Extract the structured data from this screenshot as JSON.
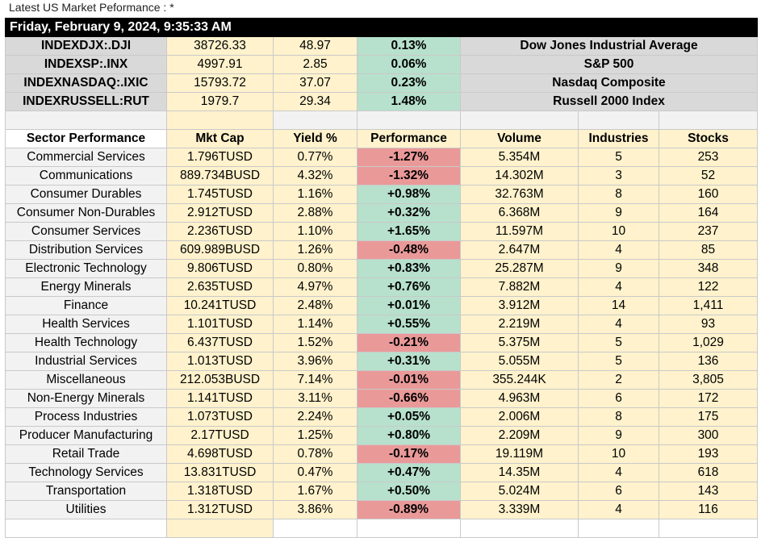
{
  "page": {
    "title": "Latest US Market Peformance : *"
  },
  "banner": {
    "date": "Friday, February 9, 2024, 9:35:33 AM"
  },
  "indices": [
    {
      "symbol": "INDEXDJX:.DJI",
      "price": "38726.33",
      "change": "48.97",
      "percent": "0.13%",
      "name": "Dow Jones Industrial Average"
    },
    {
      "symbol": "INDEXSP:.INX",
      "price": "4997.91",
      "change": "2.85",
      "percent": "0.06%",
      "name": "S&P 500"
    },
    {
      "symbol": "INDEXNASDAQ:.IXIC",
      "price": "15793.72",
      "change": "37.07",
      "percent": "0.23%",
      "name": "Nasdaq Composite"
    },
    {
      "symbol": "INDEXRUSSELL:RUT",
      "price": "1979.7",
      "change": "29.34",
      "percent": "1.48%",
      "name": "Russell 2000 Index"
    }
  ],
  "sector_headers": [
    "Sector Performance",
    "Mkt Cap",
    "Yield %",
    "Performance",
    "Volume",
    "Industries",
    "Stocks"
  ],
  "sectors": [
    {
      "sector": "Commercial Services",
      "mktcap": "1.796TUSD",
      "yield": "0.77%",
      "performance": "-1.27%",
      "dir": "neg",
      "volume": "5.354M",
      "industries": "5",
      "stocks": "253"
    },
    {
      "sector": "Communications",
      "mktcap": "889.734BUSD",
      "yield": "4.32%",
      "performance": "-1.32%",
      "dir": "neg",
      "volume": "14.302M",
      "industries": "3",
      "stocks": "52"
    },
    {
      "sector": "Consumer Durables",
      "mktcap": "1.745TUSD",
      "yield": "1.16%",
      "performance": "+0.98%",
      "dir": "pos",
      "volume": "32.763M",
      "industries": "8",
      "stocks": "160"
    },
    {
      "sector": "Consumer Non-Durables",
      "mktcap": "2.912TUSD",
      "yield": "2.88%",
      "performance": "+0.32%",
      "dir": "pos",
      "volume": "6.368M",
      "industries": "9",
      "stocks": "164"
    },
    {
      "sector": "Consumer Services",
      "mktcap": "2.236TUSD",
      "yield": "1.10%",
      "performance": "+1.65%",
      "dir": "pos",
      "volume": "11.597M",
      "industries": "10",
      "stocks": "237"
    },
    {
      "sector": "Distribution Services",
      "mktcap": "609.989BUSD",
      "yield": "1.26%",
      "performance": "-0.48%",
      "dir": "neg",
      "volume": "2.647M",
      "industries": "4",
      "stocks": "85"
    },
    {
      "sector": "Electronic Technology",
      "mktcap": "9.806TUSD",
      "yield": "0.80%",
      "performance": "+0.83%",
      "dir": "pos",
      "volume": "25.287M",
      "industries": "9",
      "stocks": "348"
    },
    {
      "sector": "Energy Minerals",
      "mktcap": "2.635TUSD",
      "yield": "4.97%",
      "performance": "+0.76%",
      "dir": "pos",
      "volume": "7.882M",
      "industries": "4",
      "stocks": "122"
    },
    {
      "sector": "Finance",
      "mktcap": "10.241TUSD",
      "yield": "2.48%",
      "performance": "+0.01%",
      "dir": "pos",
      "volume": "3.912M",
      "industries": "14",
      "stocks": "1,411"
    },
    {
      "sector": "Health Services",
      "mktcap": "1.101TUSD",
      "yield": "1.14%",
      "performance": "+0.55%",
      "dir": "pos",
      "volume": "2.219M",
      "industries": "4",
      "stocks": "93"
    },
    {
      "sector": "Health Technology",
      "mktcap": "6.437TUSD",
      "yield": "1.52%",
      "performance": "-0.21%",
      "dir": "neg",
      "volume": "5.375M",
      "industries": "5",
      "stocks": "1,029"
    },
    {
      "sector": "Industrial Services",
      "mktcap": "1.013TUSD",
      "yield": "3.96%",
      "performance": "+0.31%",
      "dir": "pos",
      "volume": "5.055M",
      "industries": "5",
      "stocks": "136"
    },
    {
      "sector": "Miscellaneous",
      "mktcap": "212.053BUSD",
      "yield": "7.14%",
      "performance": "-0.01%",
      "dir": "neg",
      "volume": "355.244K",
      "industries": "2",
      "stocks": "3,805"
    },
    {
      "sector": "Non-Energy Minerals",
      "mktcap": "1.141TUSD",
      "yield": "3.11%",
      "performance": "-0.66%",
      "dir": "neg",
      "volume": "4.963M",
      "industries": "6",
      "stocks": "172"
    },
    {
      "sector": "Process Industries",
      "mktcap": "1.073TUSD",
      "yield": "2.24%",
      "performance": "+0.05%",
      "dir": "pos",
      "volume": "2.006M",
      "industries": "8",
      "stocks": "175"
    },
    {
      "sector": "Producer Manufacturing",
      "mktcap": "2.17TUSD",
      "yield": "1.25%",
      "performance": "+0.80%",
      "dir": "pos",
      "volume": "2.209M",
      "industries": "9",
      "stocks": "300"
    },
    {
      "sector": "Retail Trade",
      "mktcap": "4.698TUSD",
      "yield": "0.78%",
      "performance": "-0.17%",
      "dir": "neg",
      "volume": "19.119M",
      "industries": "10",
      "stocks": "193"
    },
    {
      "sector": "Technology Services",
      "mktcap": "13.831TUSD",
      "yield": "0.47%",
      "performance": "+0.47%",
      "dir": "pos",
      "volume": "14.35M",
      "industries": "4",
      "stocks": "618"
    },
    {
      "sector": "Transportation",
      "mktcap": "1.318TUSD",
      "yield": "1.67%",
      "performance": "+0.50%",
      "dir": "pos",
      "volume": "5.024M",
      "industries": "6",
      "stocks": "143"
    },
    {
      "sector": "Utilities",
      "mktcap": "1.312TUSD",
      "yield": "3.86%",
      "performance": "-0.89%",
      "dir": "neg",
      "volume": "3.339M",
      "industries": "4",
      "stocks": "116"
    }
  ],
  "colors": {
    "positive": "#b7e1cd",
    "negative": "#ea9999",
    "cream": "#fff2cc",
    "gray": "#d9d9d9"
  }
}
